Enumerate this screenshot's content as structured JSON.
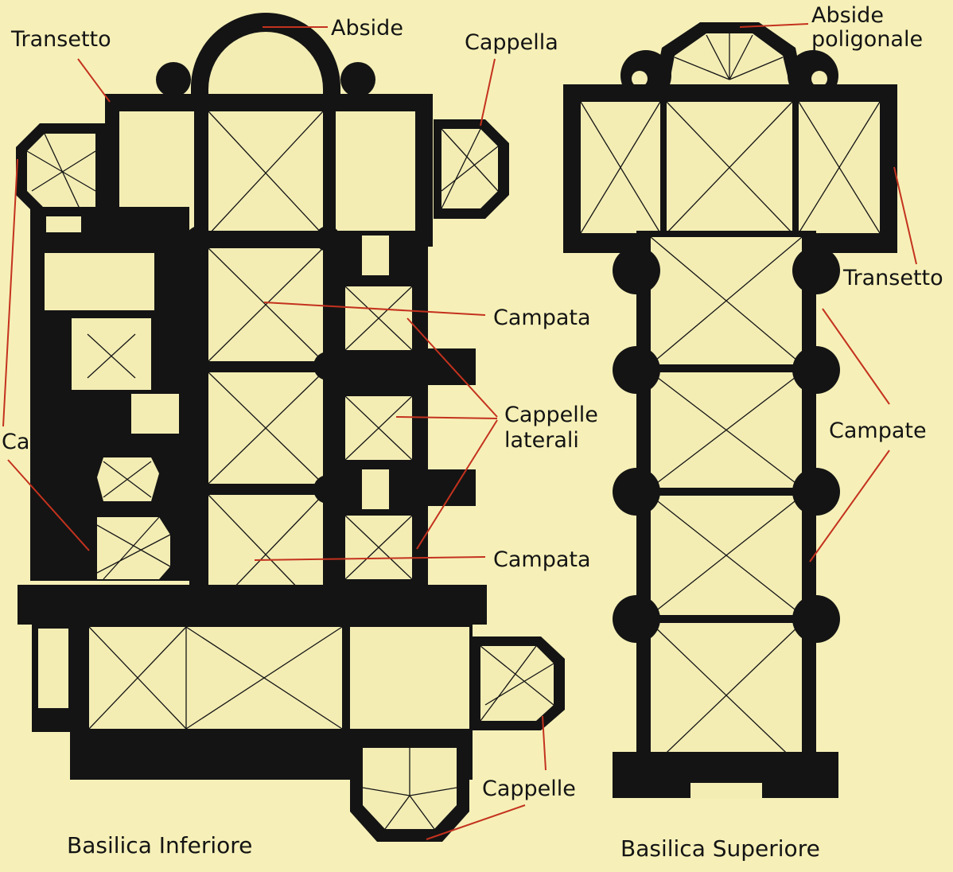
{
  "labels": {
    "transetto_left": "Transetto",
    "abside": "Abside",
    "cappella": "Cappella",
    "campata_top": "Campata",
    "cappelle_laterali_1": "Cappelle",
    "cappelle_laterali_2": "laterali",
    "campata_bottom": "Campata",
    "cappelle_left": "Cappelle",
    "cappelle_bottom": "Cappelle",
    "abside_poligonale_1": "Abside",
    "abside_poligonale_2": "poligonale",
    "transetto_right": "Transetto",
    "campate": "Campate"
  },
  "titles": {
    "inferiore": "Basilica Inferiore",
    "superiore": "Basilica Superiore"
  },
  "colors": {
    "background": "#f6f0b8",
    "wall": "#141414",
    "leader_line": "#c4321e"
  }
}
